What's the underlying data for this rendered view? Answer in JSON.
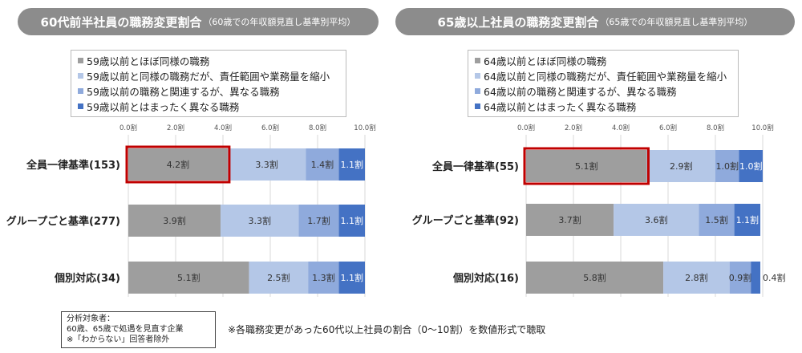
{
  "colors": {
    "series": [
      "#9e9e9e",
      "#b4c7e7",
      "#8faadc",
      "#4472c4"
    ],
    "label_dark": "#333333",
    "label_light": "#ffffff",
    "highlight": "#c00000",
    "title_bg": "#8c8c8c",
    "grid": "#d9d9d9"
  },
  "chart_data": [
    {
      "type": "bar",
      "orientation": "horizontal",
      "stacked": true,
      "title": "60代前半社員の職務変更割合",
      "subtitle": "（60歳での年収額見直し基準別平均）",
      "categories": [
        "全員一律基準(153)",
        "グループごと基準(277)",
        "個別対応(34)"
      ],
      "series": [
        {
          "name": "59歳以前とほぼ同様の職務",
          "values": [
            4.2,
            3.9,
            5.1
          ]
        },
        {
          "name": "59歳以前と同様の職務だが、責任範囲や業務量を縮小",
          "values": [
            3.3,
            3.3,
            2.5
          ]
        },
        {
          "name": "59歳以前の職務と関連するが、異なる職務",
          "values": [
            1.4,
            1.7,
            1.3
          ]
        },
        {
          "name": "59歳以前とはまったく異なる職務",
          "values": [
            1.1,
            1.1,
            1.1
          ]
        }
      ],
      "data_labels": [
        [
          "4.2割",
          "3.3割",
          "1.4割",
          "1.1割"
        ],
        [
          "3.9割",
          "3.3割",
          "1.7割",
          "1.1割"
        ],
        [
          "5.1割",
          "2.5割",
          "1.3割",
          "1.1割"
        ]
      ],
      "xlim": [
        0,
        10
      ],
      "tick_labels": [
        "0.0割",
        "2.0割",
        "4.0割",
        "6.0割",
        "8.0割",
        "10.0割"
      ],
      "highlight": {
        "row": 0,
        "segment": 0
      },
      "legend_position": "top"
    },
    {
      "type": "bar",
      "orientation": "horizontal",
      "stacked": true,
      "title": "65歳以上社員の職務変更割合",
      "subtitle": "（65歳での年収額見直し基準別平均）",
      "categories": [
        "全員一律基準(55)",
        "グループごと基準(92)",
        "個別対応(16)"
      ],
      "series": [
        {
          "name": "64歳以前とほぼ同様の職務",
          "values": [
            5.1,
            3.7,
            5.8
          ]
        },
        {
          "name": "64歳以前と同様の職務だが、責任範囲や業務量を縮小",
          "values": [
            2.9,
            3.6,
            2.8
          ]
        },
        {
          "name": "64歳以前の職務と関連するが、異なる職務",
          "values": [
            1.0,
            1.5,
            0.9
          ]
        },
        {
          "name": "64歳以前とはまったく異なる職務",
          "values": [
            1.0,
            1.1,
            0.4
          ]
        }
      ],
      "data_labels": [
        [
          "5.1割",
          "2.9割",
          "1.0割",
          "1.0割"
        ],
        [
          "3.7割",
          "3.6割",
          "1.5割",
          "1.1割"
        ],
        [
          "5.8割",
          "2.8割",
          "0.9割",
          "0.4割"
        ]
      ],
      "xlim": [
        0,
        10
      ],
      "tick_labels": [
        "0.0割",
        "2.0割",
        "4.0割",
        "6.0割",
        "8.0割",
        "10.0割"
      ],
      "highlight": {
        "row": 0,
        "segment": 0
      },
      "legend_position": "top"
    }
  ],
  "note": {
    "lines": [
      "分析対象者：",
      "60歳、65歳で処遇を見直す企業",
      "※「わからない」回答者除外"
    ]
  },
  "footnote": "※各職務変更があった60代以上社員の割合（0～10割）を数値形式で聴取"
}
